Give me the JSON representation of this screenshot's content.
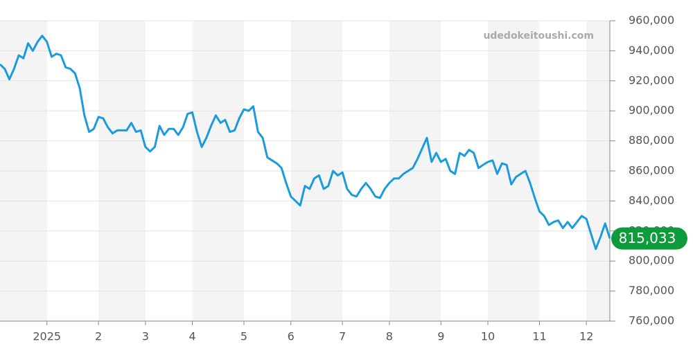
{
  "chart_data": {
    "type": "line",
    "watermark": "udedokeitoushi.com",
    "categories": [
      null,
      null,
      null,
      null,
      null,
      null,
      null,
      null,
      null,
      null,
      "2025",
      null,
      null,
      null,
      null,
      null,
      null,
      null,
      null,
      null,
      null,
      "2",
      null,
      null,
      null,
      null,
      null,
      null,
      null,
      null,
      null,
      "3",
      null,
      null,
      null,
      null,
      null,
      null,
      null,
      null,
      null,
      "4",
      null,
      null,
      null,
      null,
      null,
      null,
      null,
      null,
      null,
      null,
      "5",
      null,
      null,
      null,
      null,
      null,
      null,
      null,
      null,
      null,
      "6",
      null,
      null,
      null,
      null,
      null,
      null,
      null,
      null,
      null,
      null,
      "7",
      null,
      null,
      null,
      null,
      null,
      null,
      null,
      null,
      null,
      "8",
      null,
      null,
      null,
      null,
      null,
      null,
      null,
      null,
      null,
      null,
      "9",
      null,
      null,
      null,
      null,
      null,
      null,
      null,
      null,
      null,
      "10",
      null,
      null,
      null,
      null,
      null,
      null,
      null,
      null,
      null,
      null,
      "11",
      null,
      null,
      null,
      null,
      null,
      null,
      null,
      null,
      null,
      "12",
      null,
      null,
      null,
      null,
      null
    ],
    "values": [
      931000,
      928000,
      921000,
      928000,
      937000,
      935000,
      945000,
      940000,
      946000,
      950000,
      946000,
      936000,
      938000,
      937000,
      929000,
      928000,
      925000,
      915000,
      897000,
      886000,
      888000,
      896000,
      895000,
      889000,
      885000,
      887000,
      887000,
      887000,
      892000,
      886000,
      887000,
      876000,
      873000,
      876000,
      890000,
      884000,
      888000,
      888000,
      884000,
      889000,
      898000,
      899000,
      886000,
      876000,
      882000,
      890000,
      897000,
      892000,
      894000,
      886000,
      887000,
      895000,
      901000,
      900000,
      903000,
      886000,
      882000,
      869000,
      867000,
      865000,
      862000,
      852000,
      843000,
      840000,
      837000,
      850000,
      848000,
      855000,
      857000,
      848000,
      850000,
      860000,
      857000,
      859000,
      848000,
      844000,
      843000,
      848000,
      852000,
      848000,
      843000,
      842000,
      848000,
      852000,
      855000,
      855000,
      858000,
      860000,
      862000,
      868000,
      875000,
      882000,
      866000,
      872000,
      866000,
      868000,
      860000,
      858000,
      872000,
      870000,
      874000,
      872000,
      862000,
      864000,
      866000,
      867000,
      858000,
      865000,
      864000,
      851000,
      856000,
      858000,
      860000,
      852000,
      842000,
      833000,
      830000,
      824000,
      826000,
      827000,
      822000,
      826000,
      822000,
      826000,
      830000,
      828000,
      818000,
      808000,
      816000,
      825000,
      815033
    ],
    "color": "#1a9bdb",
    "current_price": {
      "value": 815033,
      "label": "815,033"
    },
    "ylim": [
      760000,
      960000
    ],
    "yticks": [
      {
        "value": 760000,
        "label": "760,000"
      },
      {
        "value": 780000,
        "label": "780,000"
      },
      {
        "value": 800000,
        "label": "800,000"
      },
      {
        "value": 820000,
        "label": "820,000"
      },
      {
        "value": 840000,
        "label": "840,000"
      },
      {
        "value": 860000,
        "label": "860,000"
      },
      {
        "value": 880000,
        "label": "880,000"
      },
      {
        "value": 900000,
        "label": "900,000"
      },
      {
        "value": 920000,
        "label": "920,000"
      },
      {
        "value": 940000,
        "label": "940,000"
      },
      {
        "value": 960000,
        "label": "960,000"
      }
    ],
    "grid": true
  }
}
